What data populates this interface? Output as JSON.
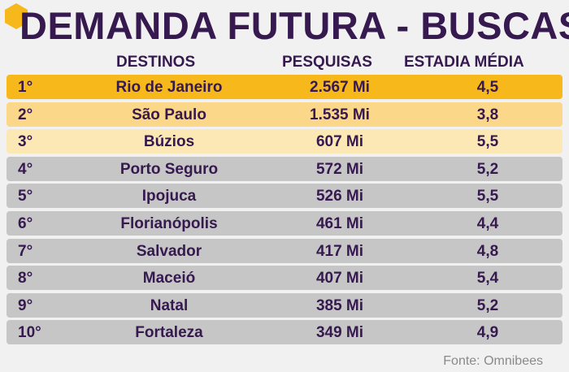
{
  "title": "DEMANDA FUTURA - BUSCAS",
  "headers": {
    "destinos": "DESTINOS",
    "pesquisas": "PESQUISAS",
    "estadia": "ESTADIA MÉDIA"
  },
  "colors": {
    "title": "#35194f",
    "row_1": "#f6b81a",
    "row_2": "#fbd78a",
    "row_3": "#fce8b4",
    "row_other": "#c6c6c6",
    "hexagon": "#f6b81a"
  },
  "chart_data": {
    "type": "table",
    "title": "DEMANDA FUTURA - BUSCAS",
    "columns": [
      "",
      "DESTINOS",
      "PESQUISAS",
      "ESTADIA MÉDIA"
    ],
    "rows": [
      {
        "rank": "1°",
        "destino": "Rio de Janeiro",
        "pesquisas": "2.567 Mi",
        "estadia": "4,5"
      },
      {
        "rank": "2°",
        "destino": "São Paulo",
        "pesquisas": "1.535 Mi",
        "estadia": "3,8"
      },
      {
        "rank": "3°",
        "destino": "Búzios",
        "pesquisas": "607 Mi",
        "estadia": "5,5"
      },
      {
        "rank": "4°",
        "destino": "Porto Seguro",
        "pesquisas": "572 Mi",
        "estadia": "5,2"
      },
      {
        "rank": "5°",
        "destino": "Ipojuca",
        "pesquisas": "526 Mi",
        "estadia": "5,5"
      },
      {
        "rank": "6°",
        "destino": "Florianópolis",
        "pesquisas": "461 Mi",
        "estadia": "4,4"
      },
      {
        "rank": "7°",
        "destino": "Salvador",
        "pesquisas": "417 Mi",
        "estadia": "4,8"
      },
      {
        "rank": "8°",
        "destino": "Maceió",
        "pesquisas": "407 Mi",
        "estadia": "5,4"
      },
      {
        "rank": "9°",
        "destino": "Natal",
        "pesquisas": "385 Mi",
        "estadia": "5,2"
      },
      {
        "rank": "10°",
        "destino": "Fortaleza",
        "pesquisas": "349 Mi",
        "estadia": "4,9"
      }
    ]
  },
  "source": "Fonte: Omnibees"
}
